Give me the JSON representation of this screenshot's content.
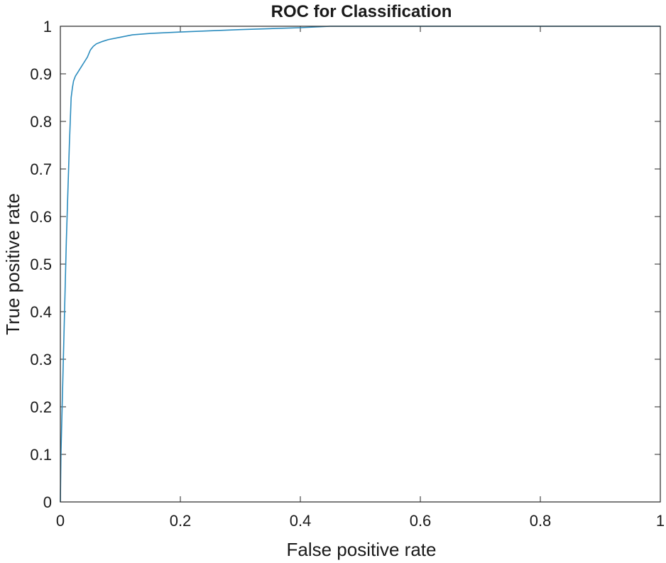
{
  "chart_data": {
    "type": "line",
    "title": "ROC for Classification",
    "xlabel": "False positive rate",
    "ylabel": "True positive rate",
    "xlim": [
      0,
      1
    ],
    "ylim": [
      0,
      1
    ],
    "xticks": [
      0,
      0.2,
      0.4,
      0.6,
      0.8,
      1
    ],
    "yticks": [
      0,
      0.1,
      0.2,
      0.3,
      0.4,
      0.5,
      0.6,
      0.7,
      0.8,
      0.9,
      1
    ],
    "xtick_labels": [
      "0",
      "0.2",
      "0.4",
      "0.6",
      "0.8",
      "1"
    ],
    "ytick_labels": [
      "0",
      "0.1",
      "0.2",
      "0.3",
      "0.4",
      "0.5",
      "0.6",
      "0.7",
      "0.8",
      "0.9",
      "1"
    ],
    "grid": false,
    "line_color": "#2b8cbe",
    "axis_color": "#262626",
    "series": [
      {
        "x": [
          0,
          0.001,
          0.005,
          0.01,
          0.015,
          0.018,
          0.02,
          0.022,
          0.025,
          0.03,
          0.035,
          0.04,
          0.045,
          0.05,
          0.055,
          0.06,
          0.07,
          0.08,
          0.1,
          0.12,
          0.15,
          0.2,
          0.3,
          0.4,
          0.45,
          0.5,
          0.7,
          1.0
        ],
        "y": [
          0,
          0.1,
          0.3,
          0.55,
          0.75,
          0.85,
          0.87,
          0.885,
          0.895,
          0.905,
          0.915,
          0.925,
          0.935,
          0.95,
          0.958,
          0.963,
          0.968,
          0.972,
          0.977,
          0.982,
          0.985,
          0.988,
          0.993,
          0.997,
          1.0,
          1.0,
          1.0,
          1.0
        ]
      }
    ]
  }
}
